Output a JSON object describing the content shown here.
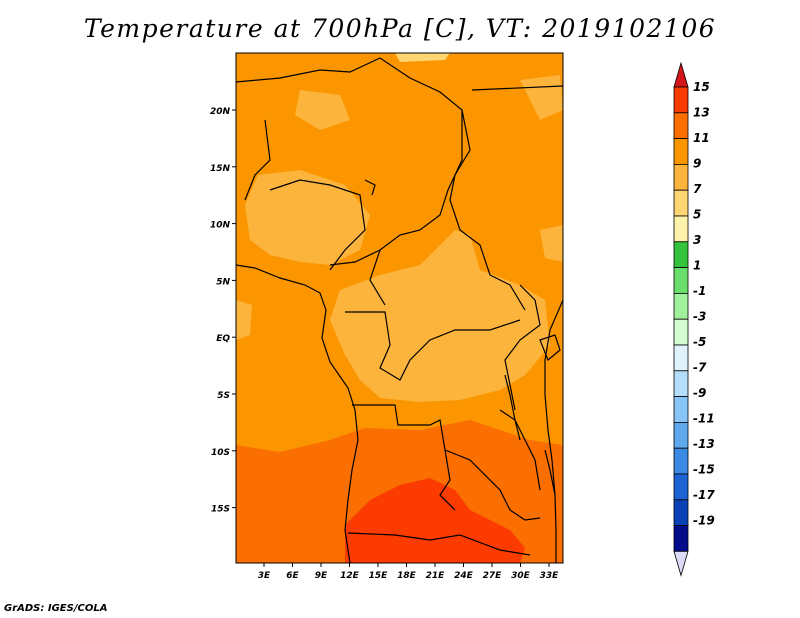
{
  "title": "Temperature at 700hPa [C], VT: 2019102106",
  "credit": "GrADS: IGES/COLA",
  "map": {
    "lat_labels": [
      "20N",
      "15N",
      "10N",
      "5N",
      "EQ",
      "5S",
      "10S",
      "15S"
    ],
    "lon_labels": [
      "3E",
      "6E",
      "9E",
      "12E",
      "15E",
      "18E",
      "21E",
      "24E",
      "27E",
      "30E",
      "33E"
    ]
  },
  "colorbar": {
    "labels": [
      "15",
      "13",
      "11",
      "9",
      "7",
      "5",
      "3",
      "1",
      "-1",
      "-3",
      "-5",
      "-7",
      "-9",
      "-11",
      "-13",
      "-15",
      "-17",
      "-19"
    ],
    "colors": [
      "#fb3b00",
      "#fb6e00",
      "#fc9600",
      "#fdb43d",
      "#fdd573",
      "#fef2aa",
      "#34c33a",
      "#6ade6a",
      "#a1f19c",
      "#d6fdd1",
      "#e0f3fc",
      "#b4dffc",
      "#88c5f7",
      "#5ea8ee",
      "#3a89e3",
      "#1c64d4",
      "#0a41b7",
      "#040e8a",
      "#000060",
      "#d8d8f8"
    ],
    "top_arrow_color": "#d4161b",
    "bottom_arrow_color": "#dcdcf6"
  },
  "palette": {
    "t11": "#fc9600",
    "t9": "#fdb43d",
    "t13": "#fb6e00",
    "t15": "#fb3b00",
    "t7": "#fdd573"
  }
}
